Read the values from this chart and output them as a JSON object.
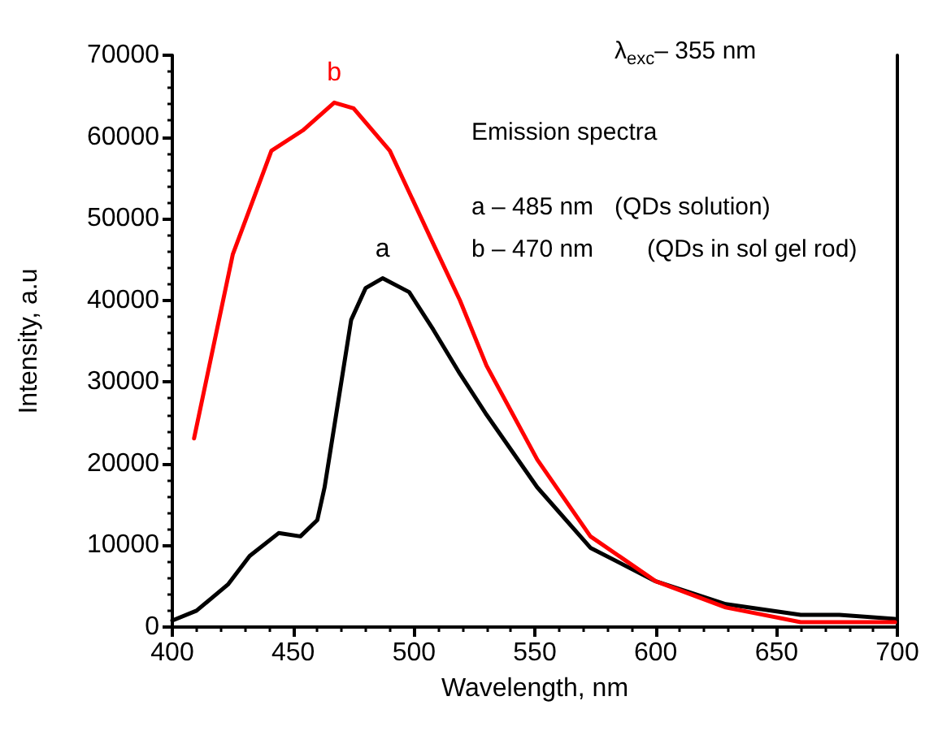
{
  "chart_data": {
    "type": "line",
    "xlabel": "Wavelength, nm",
    "ylabel": "Intensity, a.u",
    "xlim": [
      400,
      700
    ],
    "xticks": [
      400,
      450,
      500,
      550,
      600,
      650,
      700
    ],
    "ylim": [
      0,
      70000
    ],
    "yticks": [
      0,
      10000,
      20000,
      30000,
      40000,
      50000,
      60000,
      70000
    ],
    "grid": false,
    "legend": false,
    "marker": "none",
    "line_style": "solid",
    "annotations": [
      "λ$_{exc}$– 355 nm",
      "Emission spectra",
      "a – 485 nm",
      "(QDs solution)",
      "b – 470 nm",
      "(QDs in sol gel rod)"
    ],
    "series": [
      {
        "name": "a",
        "color": "#000000",
        "x": [
          400,
          410,
          423,
          432,
          444,
          453,
          460,
          463,
          468,
          474,
          480,
          487,
          498,
          508,
          519,
          530,
          551,
          573,
          600,
          629,
          660,
          676,
          699
        ],
        "values": [
          800,
          2000,
          5200,
          8700,
          11500,
          11100,
          13100,
          17100,
          26400,
          37600,
          41500,
          42700,
          41000,
          36400,
          31000,
          26000,
          17100,
          9700,
          5600,
          2800,
          1500,
          1500,
          1000
        ]
      },
      {
        "name": "b",
        "color": "#ff0000",
        "x": [
          409,
          425,
          441,
          454,
          467,
          475,
          490,
          508,
          519,
          530,
          551,
          573,
          600,
          629,
          660,
          699
        ],
        "values": [
          23100,
          45600,
          58300,
          60800,
          64200,
          63500,
          58300,
          46900,
          40000,
          32000,
          20500,
          11100,
          5600,
          2400,
          600,
          600
        ]
      }
    ]
  }
}
